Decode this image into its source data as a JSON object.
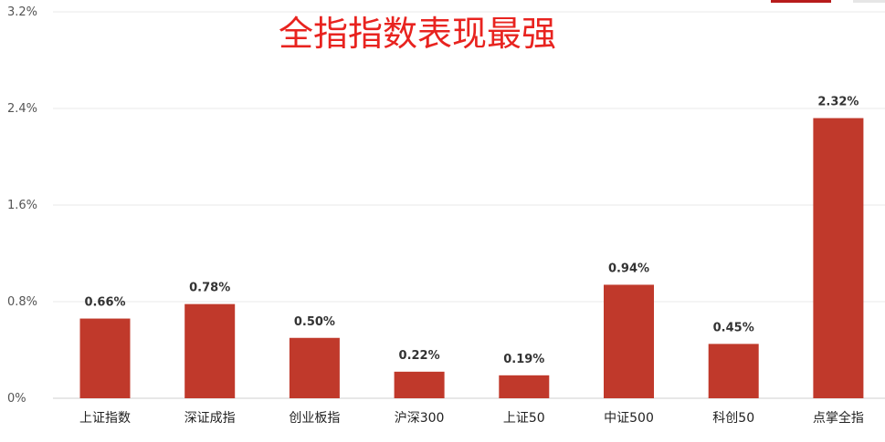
{
  "chart_data": {
    "type": "bar",
    "title": "全指指数表现最强",
    "categories": [
      "上证指数",
      "深证成指",
      "创业板指",
      "沪深300",
      "上证50",
      "中证500",
      "科创50",
      "点掌全指"
    ],
    "values": [
      0.66,
      0.78,
      0.5,
      0.22,
      0.19,
      0.94,
      0.45,
      2.32
    ],
    "value_labels": [
      "0.66%",
      "0.78%",
      "0.50%",
      "0.22%",
      "0.19%",
      "0.94%",
      "0.45%",
      "2.32%"
    ],
    "ylim": [
      0,
      3.2
    ],
    "yticks": [
      0,
      0.8,
      1.6,
      2.4,
      3.2
    ],
    "ytick_labels": [
      "0%",
      "0.8%",
      "1.6%",
      "2.4%",
      "3.2%"
    ],
    "xlabel": "",
    "ylabel": "",
    "grid": true,
    "bar_color": "#c0392b",
    "title_color": "#e8231f"
  }
}
